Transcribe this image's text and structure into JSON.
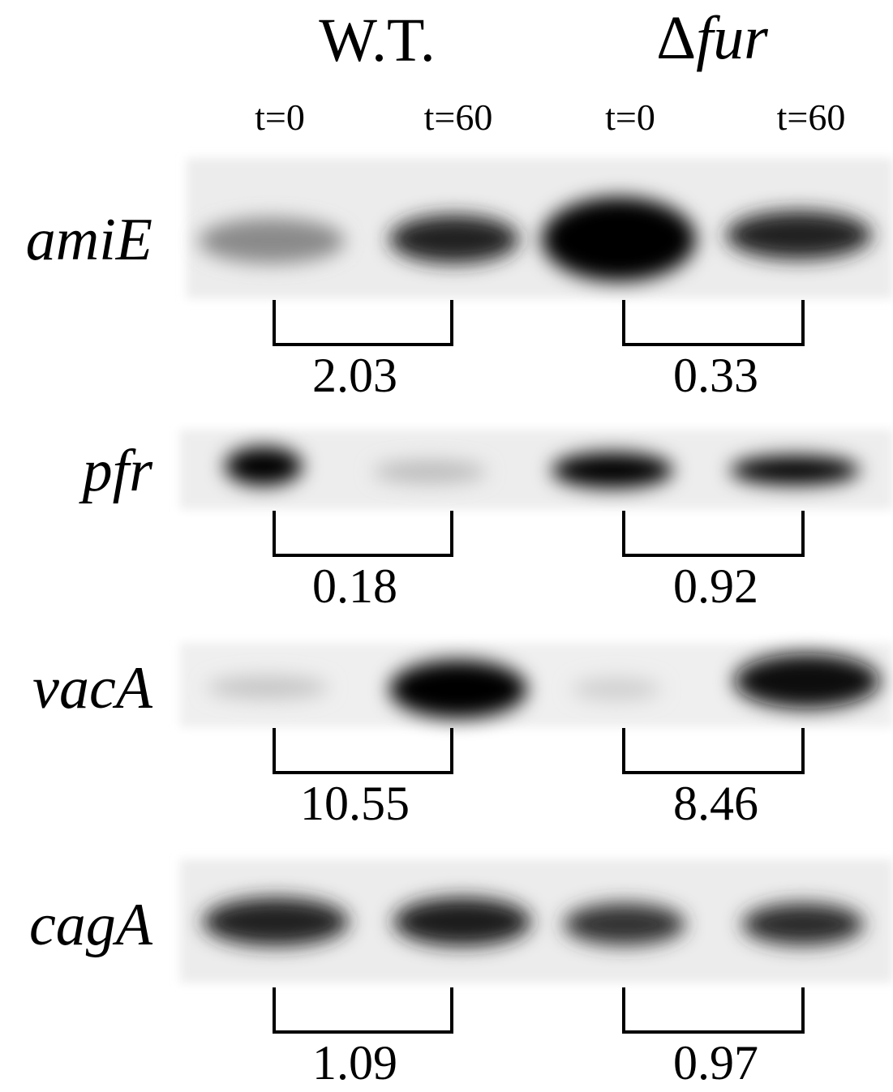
{
  "header": {
    "groups": [
      {
        "name": "W.T."
      },
      {
        "symbol": "Δ",
        "name": "fur"
      }
    ],
    "timepoints": [
      "t=0",
      "t=60",
      "t=0",
      "t=60"
    ]
  },
  "rows": [
    {
      "gene": "amiE",
      "ratios": [
        2.03,
        0.33
      ]
    },
    {
      "gene": "pfr",
      "ratios": [
        0.18,
        0.92
      ]
    },
    {
      "gene": "vacA",
      "ratios": [
        10.55,
        8.46
      ]
    },
    {
      "gene": "cagA",
      "ratios": [
        1.09,
        0.97
      ]
    }
  ]
}
